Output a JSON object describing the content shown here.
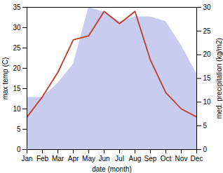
{
  "chart_data": {
    "type": "line",
    "xlabel": "date (month)",
    "ylabel": "max temp (C)",
    "y2label": "med. precipitation (kg/m2)",
    "categories": [
      "Jan",
      "Feb",
      "Mar",
      "Apr",
      "May",
      "Jun",
      "Jul",
      "Aug",
      "Sep",
      "Oct",
      "Nov",
      "Dec"
    ],
    "series": [
      {
        "type": "area",
        "axis": "y2",
        "color": "#c8cdf0",
        "values": [
          11,
          11,
          14,
          18,
          30,
          29,
          27,
          28,
          28,
          27,
          22,
          16
        ]
      },
      {
        "type": "line",
        "color": "#c0392b",
        "values": [
          8,
          13,
          19,
          27,
          28,
          34,
          31,
          34,
          22,
          14,
          10,
          8
        ]
      }
    ],
    "ylim": [
      0,
      35
    ],
    "yticks": [
      0,
      5,
      10,
      15,
      20,
      25,
      30,
      35
    ],
    "y2lim": [
      0,
      30
    ],
    "y2ticks": [
      0,
      5,
      10,
      15,
      20,
      25,
      30
    ],
    "grid": false
  }
}
